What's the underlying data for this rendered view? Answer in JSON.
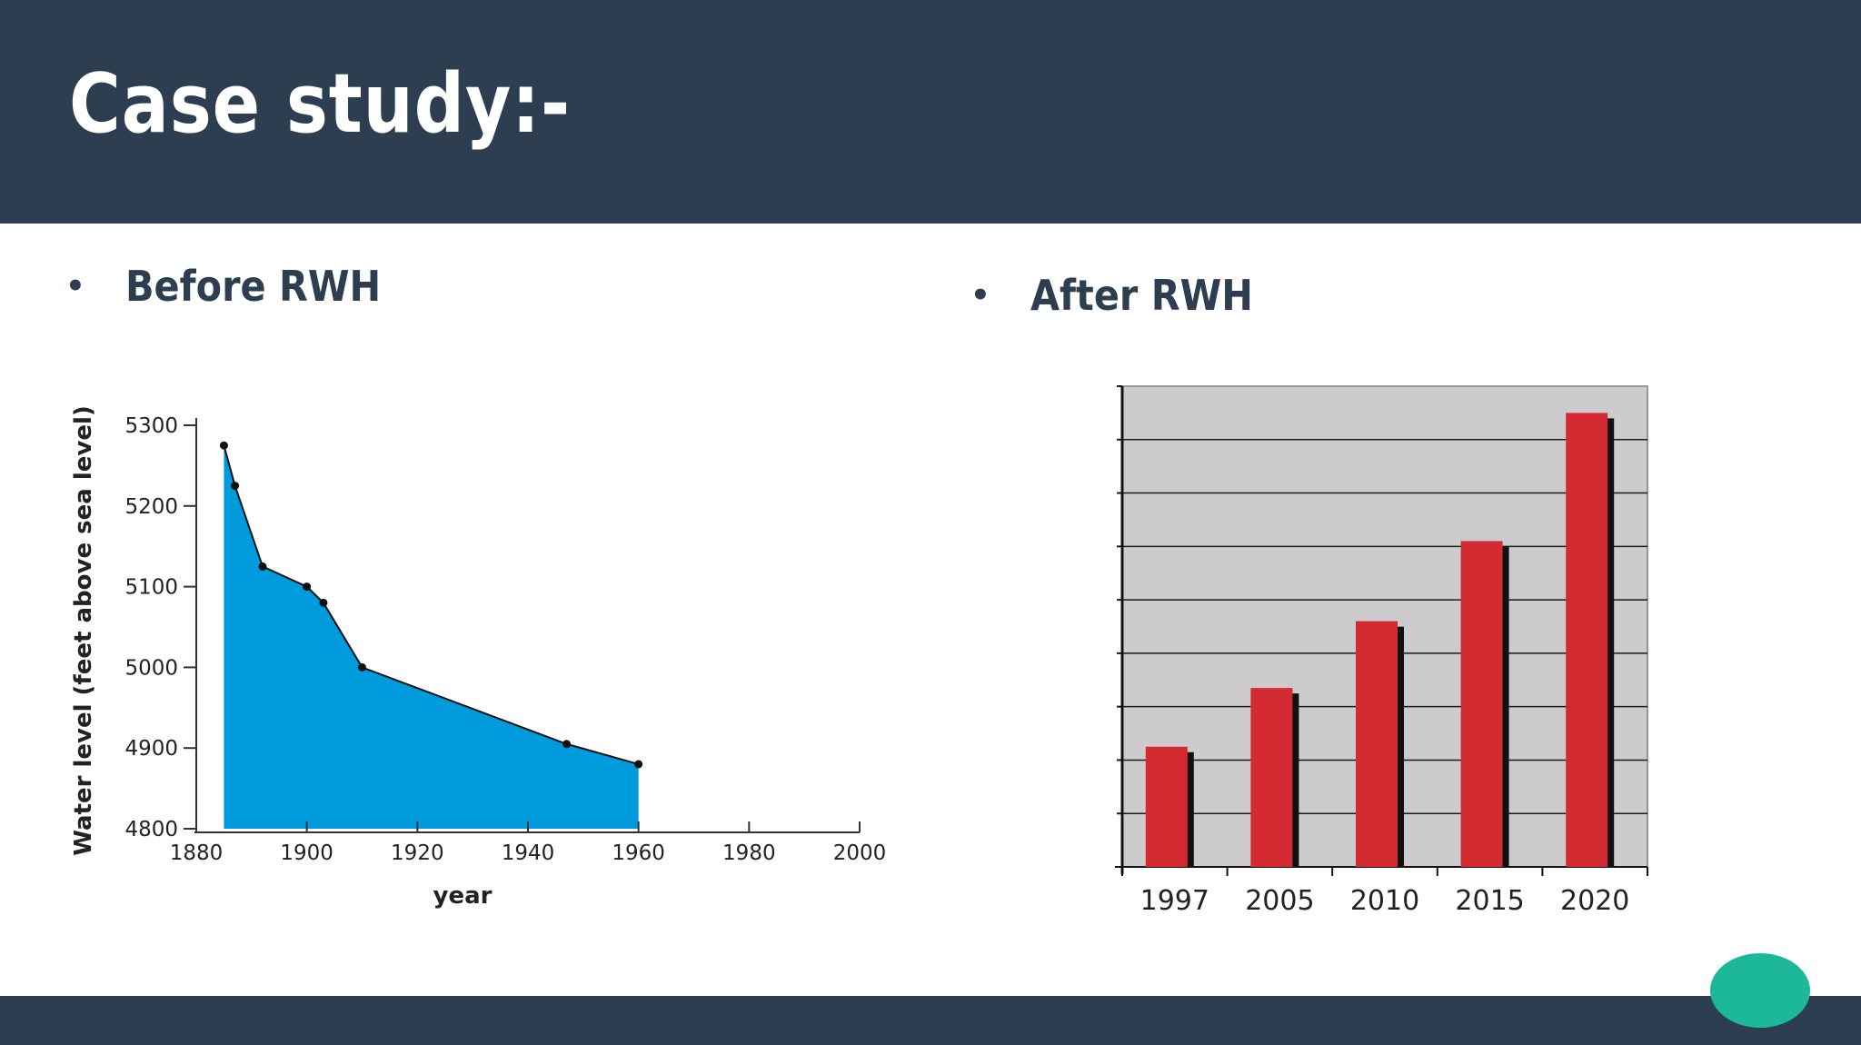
{
  "slide": {
    "title": "Case study:-",
    "left_heading": "Before RWH",
    "right_heading": "After RWH",
    "bullet": "•"
  },
  "colors": {
    "header_bg": "#2d3e50",
    "footer_bg": "#2d3e50",
    "accent_teal": "#1db89a",
    "area_fill": "#009bdd",
    "bar_fill": "#d42a31",
    "bar_panel": "#cdcbcd"
  },
  "chart_data": [
    {
      "type": "area",
      "title": "",
      "xlabel": "year",
      "ylabel": "Water level (feet above sea level)",
      "xlim": [
        1880,
        2000
      ],
      "ylim": [
        4800,
        5300
      ],
      "xticks": [
        1880,
        1900,
        1920,
        1940,
        1960,
        1980,
        2000
      ],
      "yticks": [
        4800,
        4900,
        5000,
        5100,
        5200,
        5300
      ],
      "x": [
        1885,
        1887,
        1892,
        1900,
        1903,
        1910,
        1947,
        1960
      ],
      "y": [
        5275,
        5225,
        5125,
        5100,
        5080,
        5000,
        4905,
        4880
      ],
      "grid": false
    },
    {
      "type": "bar",
      "title": "",
      "xlabel": "",
      "ylabel": "",
      "categories": [
        "1997",
        "2005",
        "2010",
        "2015",
        "2020"
      ],
      "values": [
        2.25,
        3.35,
        4.6,
        6.1,
        8.5
      ],
      "ylim": [
        0,
        9
      ],
      "ytick_count": 9,
      "yticks_labeled": false,
      "grid": true
    }
  ]
}
